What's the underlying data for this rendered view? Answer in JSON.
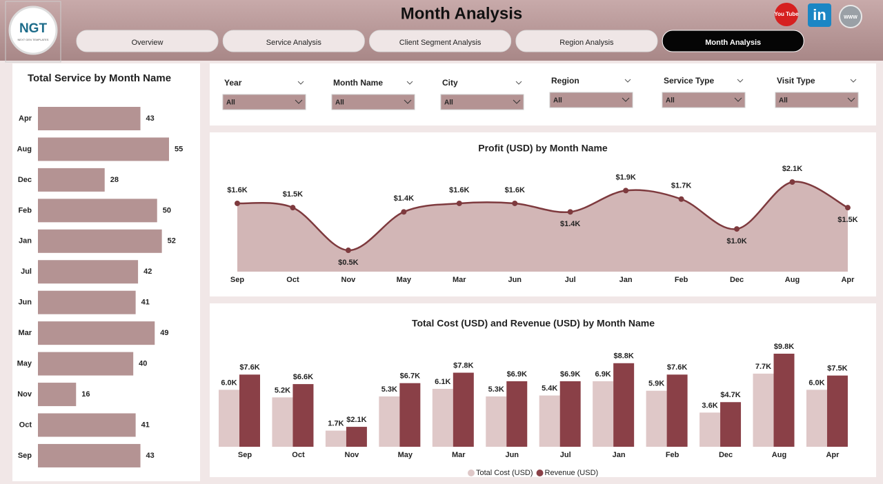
{
  "header": {
    "title": "Month Analysis",
    "logo": "NGT",
    "logo_tagline": "NEXT GEN TEMPLATES",
    "social": {
      "youtube": "You Tube",
      "linkedin": "in",
      "web": "WWW"
    }
  },
  "tabs": [
    "Overview",
    "Service Analysis",
    "Client Segment Analysis",
    "Region Analysis",
    "Month Analysis"
  ],
  "active_tab": 4,
  "filters": [
    {
      "label": "Year",
      "value": "All"
    },
    {
      "label": "Month Name",
      "value": "All"
    },
    {
      "label": "City",
      "value": "All"
    },
    {
      "label": "Region",
      "value": "All"
    },
    {
      "label": "Service Type",
      "value": "All"
    },
    {
      "label": "Visit Type",
      "value": "All"
    }
  ],
  "chart_data": [
    {
      "type": "hbar",
      "title": "Total Service by Month Name",
      "color": "#b49393",
      "categories": [
        "Apr",
        "Aug",
        "Dec",
        "Feb",
        "Jan",
        "Jul",
        "Jun",
        "Mar",
        "May",
        "Nov",
        "Oct",
        "Sep"
      ],
      "values": [
        43,
        55,
        28,
        50,
        52,
        42,
        41,
        49,
        40,
        16,
        41,
        43
      ]
    },
    {
      "type": "area",
      "title": "Profit (USD) by Month Name",
      "color": "#7e3a3e",
      "fill": "#d2b6b6",
      "categories": [
        "Sep",
        "Oct",
        "Nov",
        "May",
        "Mar",
        "Jun",
        "Jul",
        "Jan",
        "Feb",
        "Dec",
        "Aug",
        "Apr"
      ],
      "values": [
        1600,
        1500,
        500,
        1400,
        1600,
        1600,
        1400,
        1900,
        1700,
        1000,
        2100,
        1500
      ],
      "value_labels": [
        "$1.6K",
        "$1.5K",
        "$0.5K",
        "$1.4K",
        "$1.6K",
        "$1.6K",
        "$1.4K",
        "$1.9K",
        "$1.7K",
        "$1.0K",
        "$2.1K",
        "$1.5K"
      ]
    },
    {
      "type": "grouped-bar",
      "title": "Total Cost (USD) and Revenue (USD) by Month Name",
      "categories": [
        "Sep",
        "Oct",
        "Nov",
        "May",
        "Mar",
        "Jun",
        "Jul",
        "Jan",
        "Feb",
        "Dec",
        "Aug",
        "Apr"
      ],
      "series": [
        {
          "name": "Total Cost (USD)",
          "color": "#dfc8c8",
          "values": [
            6000,
            5200,
            1700,
            5300,
            6100,
            5300,
            5400,
            6900,
            5900,
            3600,
            7700,
            6000
          ],
          "value_labels": [
            "6.0K",
            "5.2K",
            "1.7K",
            "5.3K",
            "6.1K",
            "5.3K",
            "5.4K",
            "6.9K",
            "5.9K",
            "3.6K",
            "7.7K",
            "6.0K"
          ]
        },
        {
          "name": "Revenue (USD)",
          "color": "#8a4047",
          "values": [
            7600,
            6600,
            2100,
            6700,
            7800,
            6900,
            6900,
            8800,
            7600,
            4700,
            9800,
            7500
          ],
          "value_labels": [
            "$7.6K",
            "$6.6K",
            "$2.1K",
            "$6.7K",
            "$7.8K",
            "$6.9K",
            "$6.9K",
            "$8.8K",
            "$7.6K",
            "$4.7K",
            "$9.8K",
            "$7.5K"
          ]
        }
      ],
      "legend": "bottom"
    }
  ]
}
